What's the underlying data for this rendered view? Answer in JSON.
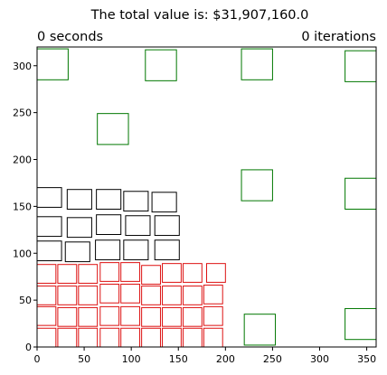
{
  "chart_data": {
    "type": "scatter",
    "title": "The total value is: $31,907,160.0",
    "left_label": "0 seconds",
    "right_label": "0 iterations",
    "xlabel": "",
    "ylabel": "",
    "xlim": [
      0,
      360
    ],
    "ylim": [
      0,
      320
    ],
    "xticks": [
      0,
      50,
      100,
      150,
      200,
      250,
      300,
      350
    ],
    "yticks": [
      0,
      50,
      100,
      150,
      200,
      250,
      300
    ],
    "grid": false,
    "colors": {
      "red": "#dd1111",
      "black": "#000000",
      "green": "#007700"
    },
    "series": [
      {
        "color": "red",
        "rects": [
          [
            0,
            0,
            20,
            20
          ],
          [
            22,
            0,
            20,
            20
          ],
          [
            44,
            0,
            20,
            20
          ],
          [
            67,
            0,
            20,
            20
          ],
          [
            89,
            0,
            20,
            20
          ],
          [
            111,
            0,
            20,
            20
          ],
          [
            133,
            0,
            20,
            20
          ],
          [
            155,
            0,
            20,
            20
          ],
          [
            177,
            0,
            20,
            20
          ],
          [
            0,
            23,
            20,
            20
          ],
          [
            22,
            22,
            20,
            20
          ],
          [
            44,
            22,
            20,
            20
          ],
          [
            67,
            23,
            20,
            20
          ],
          [
            89,
            23,
            20,
            20
          ],
          [
            111,
            22,
            20,
            20
          ],
          [
            133,
            22,
            20,
            20
          ],
          [
            155,
            22,
            20,
            20
          ],
          [
            177,
            23,
            20,
            20
          ],
          [
            0,
            45,
            20,
            20
          ],
          [
            22,
            45,
            20,
            20
          ],
          [
            44,
            45,
            20,
            20
          ],
          [
            67,
            47,
            20,
            20
          ],
          [
            89,
            47,
            20,
            20
          ],
          [
            111,
            45,
            20,
            20
          ],
          [
            133,
            45,
            20,
            20
          ],
          [
            155,
            45,
            20,
            20
          ],
          [
            177,
            46,
            20,
            20
          ],
          [
            0,
            68,
            20,
            20
          ],
          [
            22,
            68,
            20,
            20
          ],
          [
            44,
            68,
            20,
            20
          ],
          [
            67,
            70,
            20,
            20
          ],
          [
            89,
            70,
            20,
            20
          ],
          [
            111,
            67,
            20,
            20
          ],
          [
            133,
            69,
            20,
            20
          ],
          [
            155,
            69,
            20,
            20
          ],
          [
            180,
            69,
            20,
            20
          ]
        ]
      },
      {
        "color": "black",
        "rects": [
          [
            0,
            92,
            26,
            21
          ],
          [
            30,
            91,
            26,
            21
          ],
          [
            62,
            93,
            26,
            21
          ],
          [
            92,
            93,
            26,
            21
          ],
          [
            125,
            93,
            26,
            21
          ],
          [
            0,
            118,
            26,
            21
          ],
          [
            32,
            117,
            26,
            21
          ],
          [
            63,
            120,
            26,
            21
          ],
          [
            94,
            119,
            26,
            21
          ],
          [
            125,
            119,
            26,
            21
          ],
          [
            0,
            149,
            26,
            21
          ],
          [
            32,
            147,
            26,
            21
          ],
          [
            63,
            147,
            26,
            21
          ],
          [
            92,
            145,
            26,
            21
          ],
          [
            122,
            144,
            26,
            21
          ]
        ]
      },
      {
        "color": "green",
        "rects": [
          [
            0,
            285,
            33,
            33
          ],
          [
            115,
            284,
            33,
            33
          ],
          [
            217,
            285,
            33,
            33
          ],
          [
            327,
            283,
            33,
            33
          ],
          [
            64,
            216,
            33,
            33
          ],
          [
            217,
            156,
            33,
            33
          ],
          [
            327,
            147,
            33,
            33
          ],
          [
            220,
            2,
            33,
            33
          ],
          [
            327,
            8,
            33,
            33
          ]
        ]
      }
    ]
  }
}
